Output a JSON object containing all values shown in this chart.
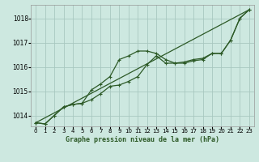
{
  "title": "Graphe pression niveau de la mer (hPa)",
  "background_color": "#cde8e0",
  "plot_bg_color": "#cde8e0",
  "grid_color": "#a8c8c0",
  "line_color": "#2d5a27",
  "x_ticks": [
    0,
    1,
    2,
    3,
    4,
    5,
    6,
    7,
    8,
    9,
    10,
    11,
    12,
    13,
    14,
    15,
    16,
    17,
    18,
    19,
    20,
    21,
    22,
    23
  ],
  "y_ticks": [
    1014,
    1015,
    1016,
    1017,
    1018
  ],
  "ylim": [
    1013.55,
    1018.55
  ],
  "xlim": [
    -0.5,
    23.5
  ],
  "series1_x": [
    0,
    1,
    2,
    3,
    4,
    5,
    6,
    7,
    8,
    9,
    10,
    11,
    12,
    13,
    14,
    15,
    16,
    17,
    18,
    19,
    20,
    21,
    22,
    23
  ],
  "series1_y": [
    1013.7,
    1013.65,
    1014.0,
    1014.35,
    1014.45,
    1014.5,
    1015.05,
    1015.3,
    1015.6,
    1016.3,
    1016.45,
    1016.65,
    1016.65,
    1016.55,
    1016.3,
    1016.15,
    1016.15,
    1016.25,
    1016.3,
    1016.55,
    1016.55,
    1017.1,
    1018.0,
    1018.35
  ],
  "series2_x": [
    0,
    1,
    2,
    3,
    4,
    5,
    6,
    7,
    8,
    9,
    10,
    11,
    12,
    13,
    14,
    15,
    16,
    17,
    18,
    19,
    20,
    21,
    22,
    23
  ],
  "series2_y": [
    1013.7,
    1013.65,
    1014.0,
    1014.35,
    1014.45,
    1014.5,
    1014.65,
    1014.9,
    1015.2,
    1015.25,
    1015.4,
    1015.6,
    1016.1,
    1016.45,
    1016.15,
    1016.15,
    1016.2,
    1016.3,
    1016.35,
    1016.55,
    1016.55,
    1017.1,
    1018.0,
    1018.35
  ],
  "series3_x": [
    0,
    23
  ],
  "series3_y": [
    1013.7,
    1018.35
  ],
  "ylabel_fontsize": 6,
  "xlabel_fontsize": 6,
  "title_fontsize": 6
}
